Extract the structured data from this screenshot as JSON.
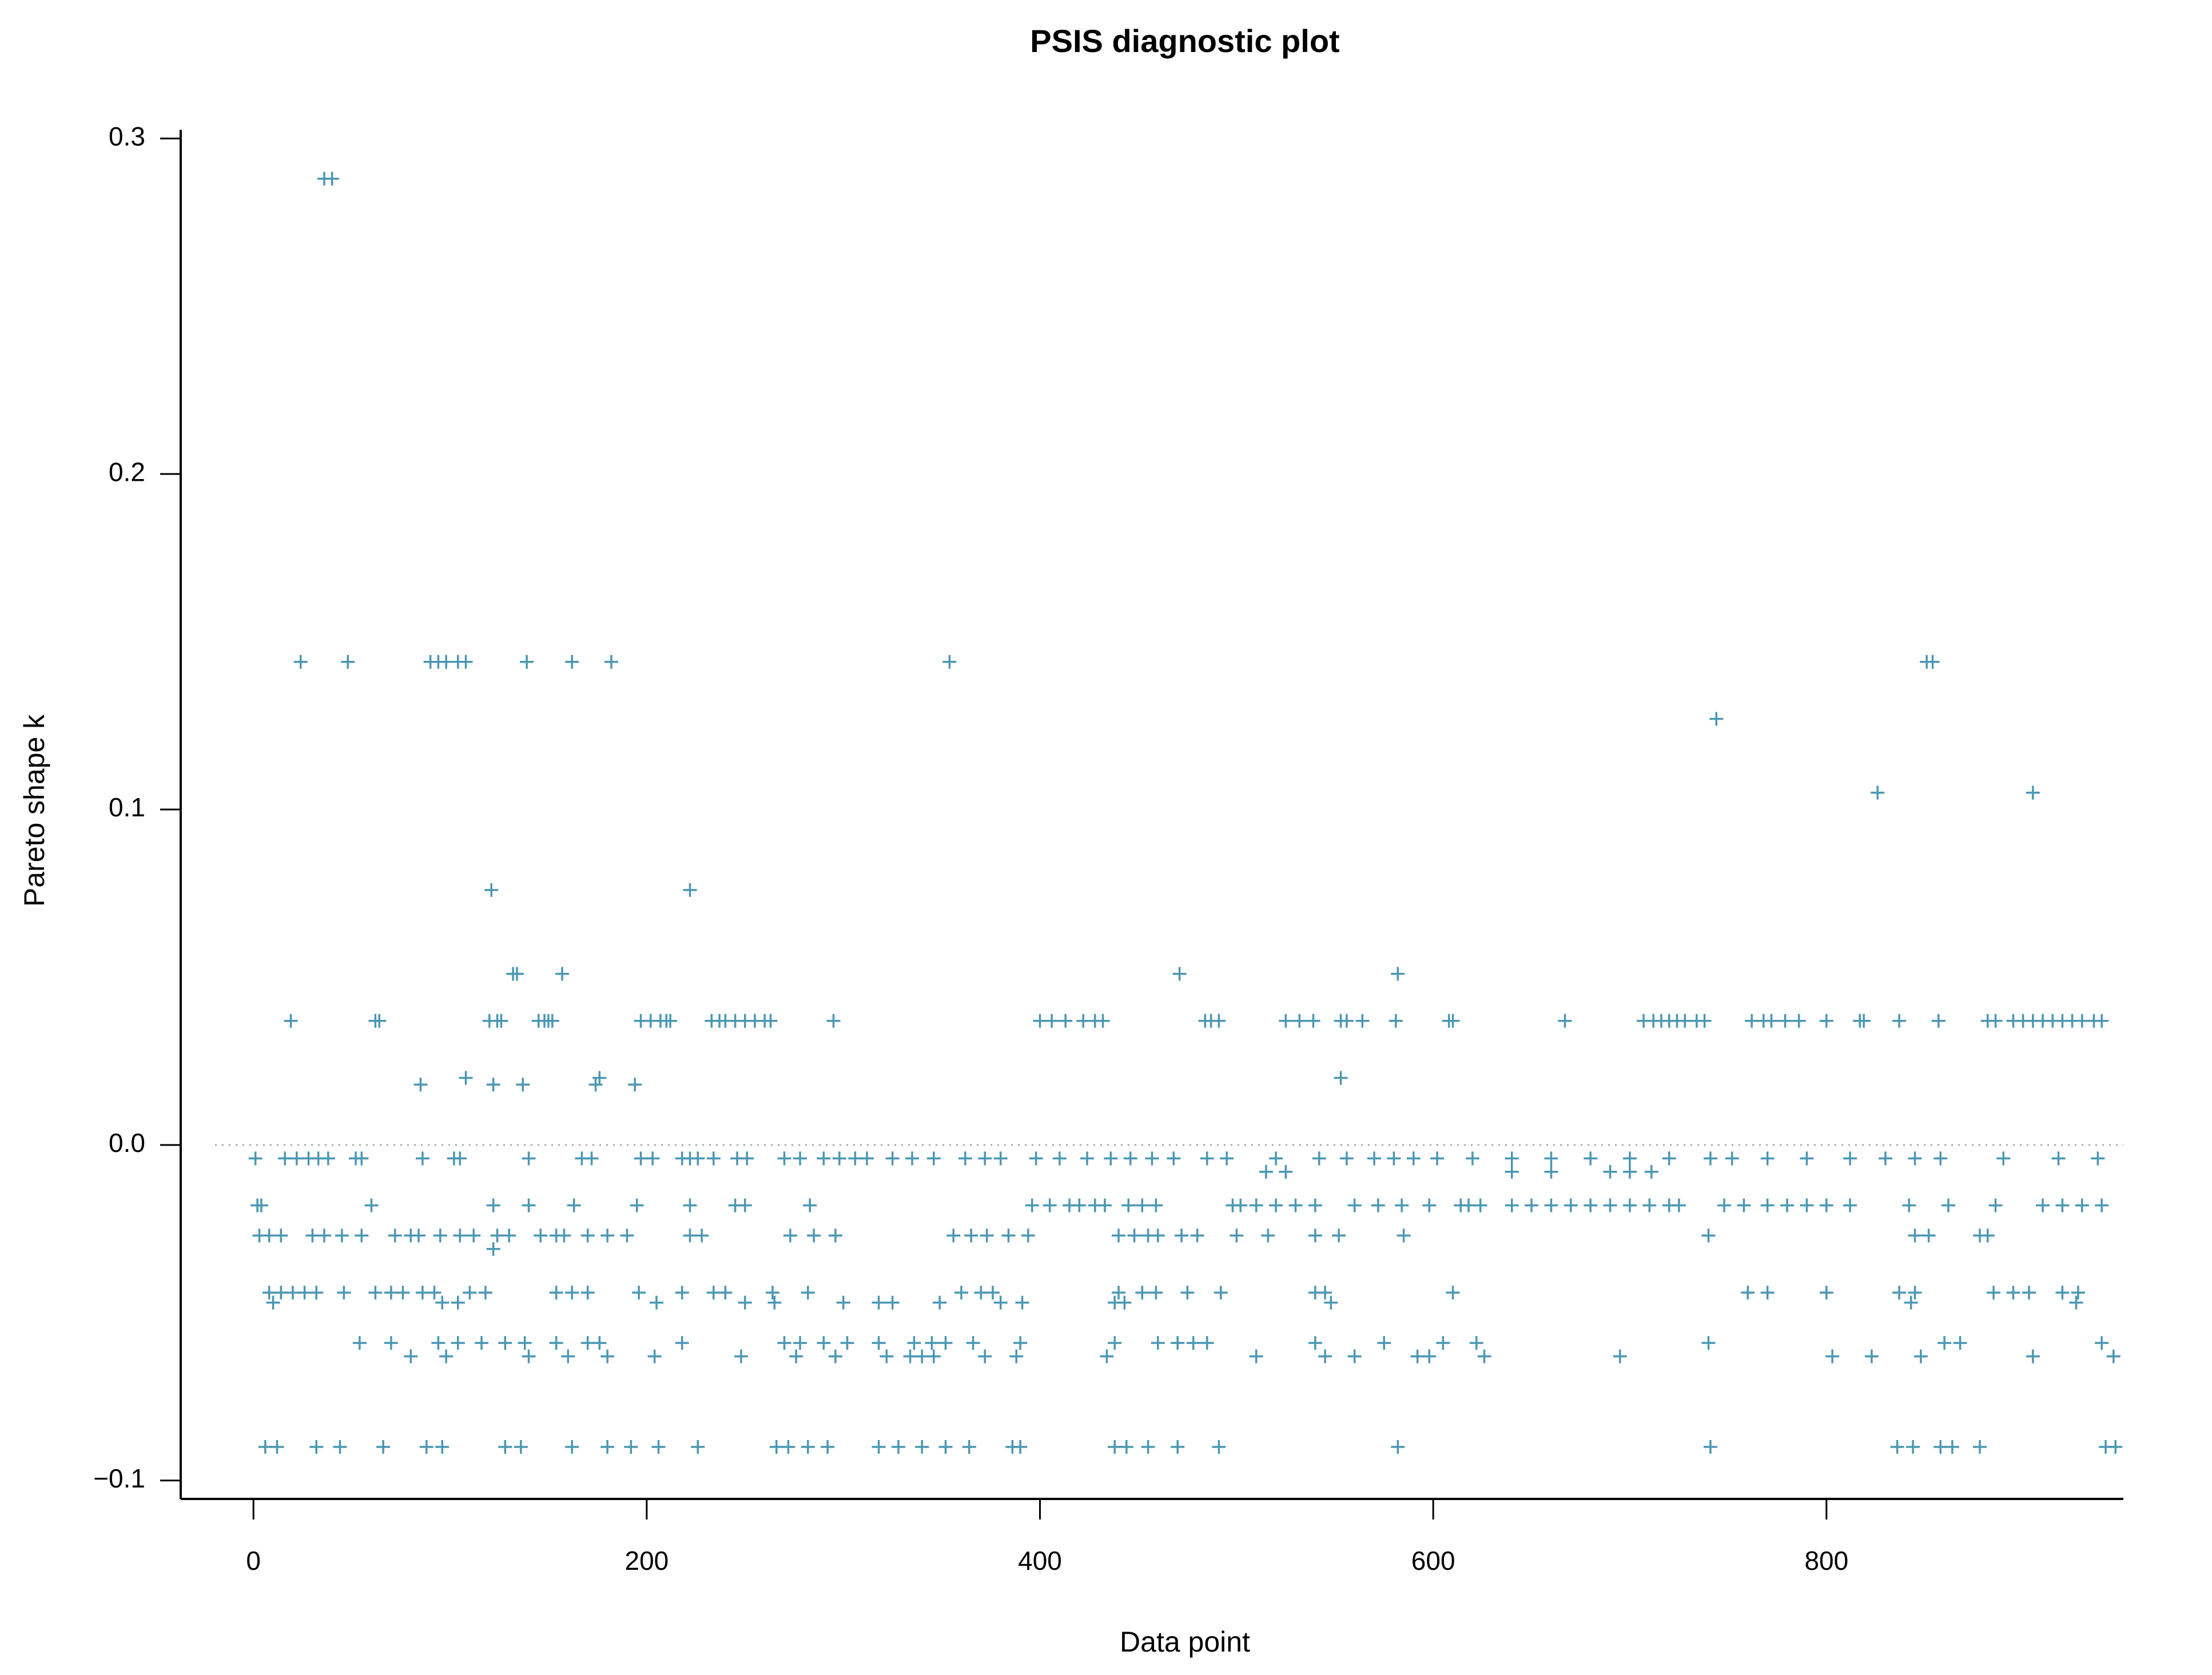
{
  "chart_data": {
    "type": "scatter",
    "title": "PSIS diagnostic plot",
    "xlabel": "Data point",
    "ylabel": "Pareto shape k",
    "color": "#4a97b2",
    "marker": "+",
    "hline": 0,
    "xlim": [
      -37,
      951
    ],
    "ylim": [
      -0.1055,
      0.3026
    ],
    "xticks": [
      0,
      200,
      400,
      600,
      800
    ],
    "yticks": [
      {
        "value": -0.1,
        "label": "−0.1"
      },
      {
        "value": 0,
        "label": "0.0"
      },
      0.1,
      0.2,
      0.3
    ],
    "x": [
      36,
      40,
      24,
      48,
      90,
      94,
      98,
      104,
      108,
      139,
      162,
      182,
      354,
      851,
      854,
      744,
      826,
      905,
      121,
      222,
      132,
      134,
      157,
      471,
      582,
      553,
      108,
      176,
      85,
      122,
      137,
      174,
      194,
      19,
      62,
      64,
      120,
      124,
      126,
      145,
      148,
      150,
      152,
      197,
      202,
      207,
      210,
      212,
      233,
      237,
      240,
      245,
      250,
      255,
      260,
      263,
      295,
      400,
      406,
      413,
      422,
      428,
      432,
      484,
      487,
      491,
      525,
      532,
      539,
      553,
      556,
      564,
      581,
      608,
      610,
      667,
      707,
      712,
      716,
      720,
      724,
      728,
      734,
      738,
      762,
      768,
      772,
      779,
      786,
      800,
      817,
      819,
      837,
      857,
      882,
      886,
      895,
      900,
      905,
      910,
      915,
      920,
      925,
      930,
      936,
      940,
      1,
      16,
      22,
      28,
      33,
      38,
      52,
      55,
      86,
      102,
      105,
      140,
      167,
      172,
      197,
      203,
      218,
      222,
      226,
      234,
      246,
      251,
      270,
      278,
      290,
      298,
      306,
      312,
      325,
      335,
      346,
      362,
      372,
      380,
      398,
      410,
      424,
      436,
      446,
      457,
      468,
      485,
      495,
      520,
      542,
      556,
      570,
      580,
      590,
      602,
      620,
      640,
      660,
      680,
      700,
      720,
      741,
      752,
      770,
      790,
      812,
      830,
      845,
      858,
      890,
      918,
      938,
      515,
      525,
      640,
      660,
      690,
      700,
      711,
      2,
      4,
      60,
      122,
      140,
      163,
      195,
      222,
      245,
      250,
      283,
      396,
      405,
      415,
      420,
      428,
      433,
      445,
      452,
      459,
      498,
      502,
      510,
      520,
      530,
      540,
      560,
      572,
      584,
      598,
      614,
      618,
      624,
      640,
      650,
      660,
      670,
      680,
      690,
      700,
      710,
      720,
      725,
      748,
      758,
      770,
      780,
      790,
      800,
      812,
      842,
      862,
      886,
      910,
      920,
      930,
      940,
      3,
      8,
      14,
      30,
      36,
      45,
      55,
      72,
      80,
      84,
      95,
      105,
      112,
      124,
      130,
      146,
      154,
      158,
      170,
      180,
      190,
      222,
      228,
      273,
      285,
      296,
      356,
      365,
      373,
      384,
      394,
      440,
      448,
      455,
      460,
      472,
      480,
      500,
      516,
      540,
      552,
      585,
      740,
      845,
      852,
      878,
      882,
      122,
      8,
      14,
      20,
      26,
      32,
      46,
      62,
      70,
      76,
      86,
      92,
      110,
      118,
      154,
      162,
      170,
      196,
      218,
      234,
      240,
      264,
      282,
      360,
      370,
      376,
      440,
      452,
      459,
      475,
      492,
      540,
      545,
      610,
      760,
      770,
      800,
      837,
      845,
      885,
      895,
      903,
      920,
      928,
      10,
      96,
      104,
      205,
      250,
      265,
      300,
      318,
      325,
      349,
      380,
      391,
      438,
      443,
      548,
      843,
      927,
      54,
      70,
      94,
      104,
      116,
      128,
      138,
      154,
      170,
      176,
      218,
      270,
      278,
      290,
      302,
      318,
      336,
      345,
      352,
      366,
      390,
      438,
      460,
      470,
      478,
      485,
      540,
      575,
      605,
      622,
      740,
      860,
      868,
      940,
      80,
      98,
      140,
      160,
      180,
      204,
      248,
      276,
      296,
      322,
      334,
      340,
      346,
      372,
      388,
      434,
      510,
      545,
      560,
      592,
      598,
      626,
      695,
      803,
      823,
      848,
      905,
      946,
      6,
      12,
      32,
      44,
      66,
      88,
      96,
      128,
      136,
      162,
      180,
      192,
      206,
      226,
      266,
      272,
      282,
      292,
      318,
      328,
      340,
      352,
      364,
      386,
      390,
      438,
      444,
      455,
      470,
      491,
      582,
      741,
      836,
      844,
      858,
      864,
      878,
      942,
      947
    ],
    "values": [
      0.288,
      0.288,
      0.144,
      0.144,
      0.144,
      0.144,
      0.144,
      0.144,
      0.144,
      0.144,
      0.144,
      0.144,
      0.144,
      0.144,
      0.144,
      0.127,
      0.105,
      0.105,
      0.076,
      0.076,
      0.051,
      0.051,
      0.051,
      0.051,
      0.051,
      0.02,
      0.02,
      0.02,
      0.018,
      0.018,
      0.018,
      0.018,
      0.018,
      0.037,
      0.037,
      0.037,
      0.037,
      0.037,
      0.037,
      0.037,
      0.037,
      0.037,
      0.037,
      0.037,
      0.037,
      0.037,
      0.037,
      0.037,
      0.037,
      0.037,
      0.037,
      0.037,
      0.037,
      0.037,
      0.037,
      0.037,
      0.037,
      0.037,
      0.037,
      0.037,
      0.037,
      0.037,
      0.037,
      0.037,
      0.037,
      0.037,
      0.037,
      0.037,
      0.037,
      0.037,
      0.037,
      0.037,
      0.037,
      0.037,
      0.037,
      0.037,
      0.037,
      0.037,
      0.037,
      0.037,
      0.037,
      0.037,
      0.037,
      0.037,
      0.037,
      0.037,
      0.037,
      0.037,
      0.037,
      0.037,
      0.037,
      0.037,
      0.037,
      0.037,
      0.037,
      0.037,
      0.037,
      0.037,
      0.037,
      0.037,
      0.037,
      0.037,
      0.037,
      0.037,
      0.037,
      0.037,
      -0.004,
      -0.004,
      -0.004,
      -0.004,
      -0.004,
      -0.004,
      -0.004,
      -0.004,
      -0.004,
      -0.004,
      -0.004,
      -0.004,
      -0.004,
      -0.004,
      -0.004,
      -0.004,
      -0.004,
      -0.004,
      -0.004,
      -0.004,
      -0.004,
      -0.004,
      -0.004,
      -0.004,
      -0.004,
      -0.004,
      -0.004,
      -0.004,
      -0.004,
      -0.004,
      -0.004,
      -0.004,
      -0.004,
      -0.004,
      -0.004,
      -0.004,
      -0.004,
      -0.004,
      -0.004,
      -0.004,
      -0.004,
      -0.004,
      -0.004,
      -0.004,
      -0.004,
      -0.004,
      -0.004,
      -0.004,
      -0.004,
      -0.004,
      -0.004,
      -0.004,
      -0.004,
      -0.004,
      -0.004,
      -0.004,
      -0.004,
      -0.004,
      -0.004,
      -0.004,
      -0.004,
      -0.004,
      -0.004,
      -0.004,
      -0.004,
      -0.004,
      -0.004,
      -0.008,
      -0.008,
      -0.008,
      -0.008,
      -0.008,
      -0.008,
      -0.008,
      -0.018,
      -0.018,
      -0.018,
      -0.018,
      -0.018,
      -0.018,
      -0.018,
      -0.018,
      -0.018,
      -0.018,
      -0.018,
      -0.018,
      -0.018,
      -0.018,
      -0.018,
      -0.018,
      -0.018,
      -0.018,
      -0.018,
      -0.018,
      -0.018,
      -0.018,
      -0.018,
      -0.018,
      -0.018,
      -0.018,
      -0.018,
      -0.018,
      -0.018,
      -0.018,
      -0.018,
      -0.018,
      -0.018,
      -0.018,
      -0.018,
      -0.018,
      -0.018,
      -0.018,
      -0.018,
      -0.018,
      -0.018,
      -0.018,
      -0.018,
      -0.018,
      -0.018,
      -0.018,
      -0.018,
      -0.018,
      -0.018,
      -0.018,
      -0.018,
      -0.018,
      -0.018,
      -0.018,
      -0.018,
      -0.018,
      -0.018,
      -0.027,
      -0.027,
      -0.027,
      -0.027,
      -0.027,
      -0.027,
      -0.027,
      -0.027,
      -0.027,
      -0.027,
      -0.027,
      -0.027,
      -0.027,
      -0.027,
      -0.027,
      -0.027,
      -0.027,
      -0.027,
      -0.027,
      -0.027,
      -0.027,
      -0.027,
      -0.027,
      -0.027,
      -0.027,
      -0.027,
      -0.027,
      -0.027,
      -0.027,
      -0.027,
      -0.027,
      -0.027,
      -0.027,
      -0.027,
      -0.027,
      -0.027,
      -0.027,
      -0.027,
      -0.027,
      -0.027,
      -0.027,
      -0.027,
      -0.027,
      -0.027,
      -0.027,
      -0.027,
      -0.027,
      -0.031,
      -0.044,
      -0.044,
      -0.044,
      -0.044,
      -0.044,
      -0.044,
      -0.044,
      -0.044,
      -0.044,
      -0.044,
      -0.044,
      -0.044,
      -0.044,
      -0.044,
      -0.044,
      -0.044,
      -0.044,
      -0.044,
      -0.044,
      -0.044,
      -0.044,
      -0.044,
      -0.044,
      -0.044,
      -0.044,
      -0.044,
      -0.044,
      -0.044,
      -0.044,
      -0.044,
      -0.044,
      -0.044,
      -0.044,
      -0.044,
      -0.044,
      -0.044,
      -0.044,
      -0.044,
      -0.044,
      -0.044,
      -0.044,
      -0.044,
      -0.044,
      -0.047,
      -0.047,
      -0.047,
      -0.047,
      -0.047,
      -0.047,
      -0.047,
      -0.047,
      -0.047,
      -0.047,
      -0.047,
      -0.047,
      -0.047,
      -0.047,
      -0.047,
      -0.047,
      -0.047,
      -0.059,
      -0.059,
      -0.059,
      -0.059,
      -0.059,
      -0.059,
      -0.059,
      -0.059,
      -0.059,
      -0.059,
      -0.059,
      -0.059,
      -0.059,
      -0.059,
      -0.059,
      -0.059,
      -0.059,
      -0.059,
      -0.059,
      -0.059,
      -0.059,
      -0.059,
      -0.059,
      -0.059,
      -0.059,
      -0.059,
      -0.059,
      -0.059,
      -0.059,
      -0.059,
      -0.059,
      -0.059,
      -0.059,
      -0.059,
      -0.063,
      -0.063,
      -0.063,
      -0.063,
      -0.063,
      -0.063,
      -0.063,
      -0.063,
      -0.063,
      -0.063,
      -0.063,
      -0.063,
      -0.063,
      -0.063,
      -0.063,
      -0.063,
      -0.063,
      -0.063,
      -0.063,
      -0.063,
      -0.063,
      -0.063,
      -0.063,
      -0.063,
      -0.063,
      -0.063,
      -0.063,
      -0.063,
      -0.09,
      -0.09,
      -0.09,
      -0.09,
      -0.09,
      -0.09,
      -0.09,
      -0.09,
      -0.09,
      -0.09,
      -0.09,
      -0.09,
      -0.09,
      -0.09,
      -0.09,
      -0.09,
      -0.09,
      -0.09,
      -0.09,
      -0.09,
      -0.09,
      -0.09,
      -0.09,
      -0.09,
      -0.09,
      -0.09,
      -0.09,
      -0.09,
      -0.09,
      -0.09,
      -0.09,
      -0.09,
      -0.09,
      -0.09,
      -0.09,
      -0.09,
      -0.09,
      -0.09,
      -0.09
    ]
  }
}
